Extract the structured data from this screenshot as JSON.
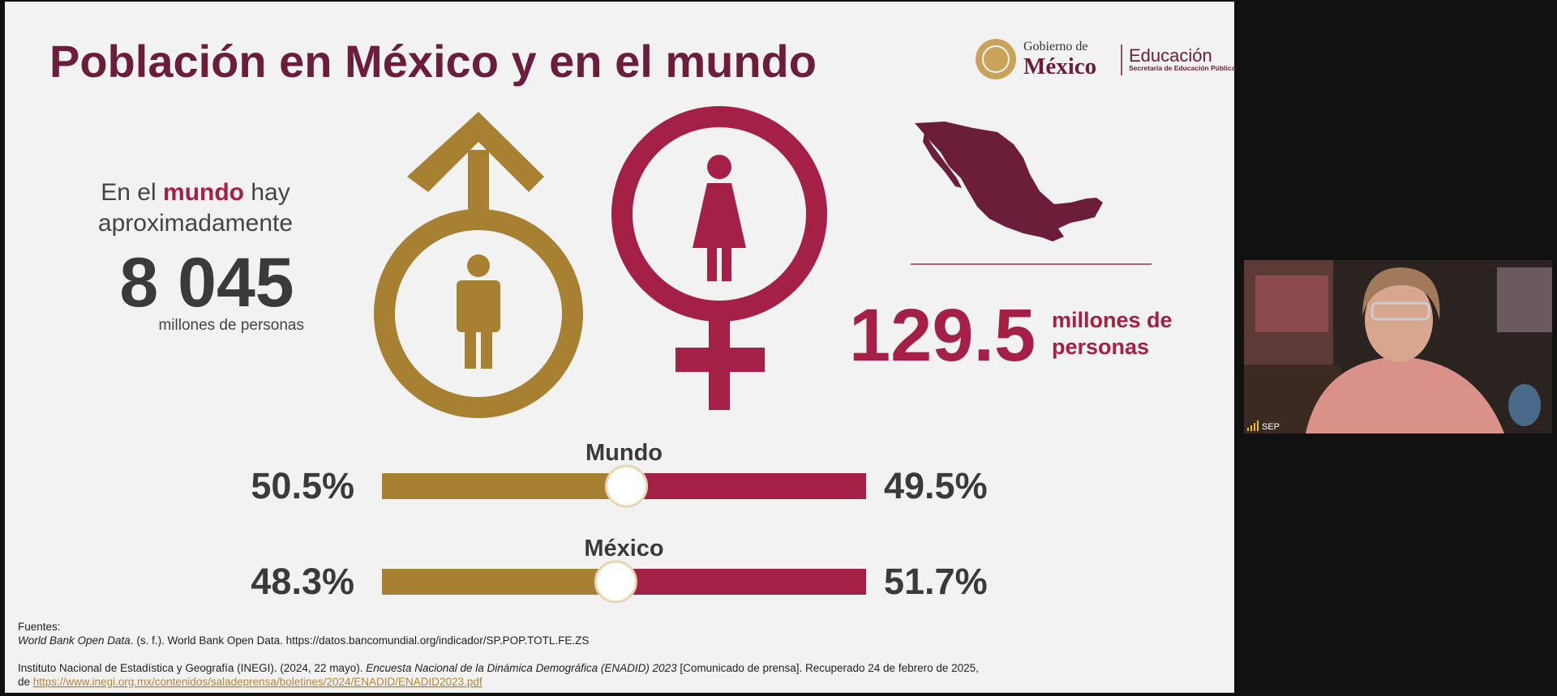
{
  "slide": {
    "title": "Población en México y en el mundo",
    "logo": {
      "gobierno": "Gobierno de",
      "mexico": "México",
      "educacion": "Educación",
      "sep": "Secretaría de Educación Pública"
    },
    "world": {
      "line1_a": "En el",
      "line1_b": "mundo",
      "line1_c": "hay",
      "line2": "aproximadamente",
      "number": "8 045",
      "unit": "millones de personas"
    },
    "mexico": {
      "number": 129.5,
      "unit_line1": "millones de",
      "unit_line2": "personas"
    },
    "bars": {
      "colors": [
        "#a88031",
        "#a52047"
      ],
      "groups": [
        {
          "title": "Mundo",
          "values": [
            50.5,
            49.5
          ],
          "value_labels": [
            "50.5%",
            "49.5%"
          ]
        },
        {
          "title": "México",
          "values": [
            48.3,
            51.7
          ],
          "value_labels": [
            "48.3%",
            "51.7%"
          ]
        }
      ]
    },
    "sources": {
      "heading": "Fuentes:",
      "ref1_title": "World Bank Open Data",
      "ref1_rest": ". (s. f.). World Bank Open Data. https://datos.bancomundial.org/indicador/SP.POP.TOTL.FE.ZS",
      "ref2_a": "Instituto Nacional de Estadística y Geografía (INEGI). (2024, 22 mayo). ",
      "ref2_title": "Encuesta Nacional de la Dinámica Demográfica (ENADID) 2023",
      "ref2_b": " [Comunicado de prensa]. Recuperado 24 de febrero de 2025,",
      "ref3_a": "de ",
      "ref3_link": "https://www.inegi.org.mx/contenidos/saladeprensa/boletines/2024/ENADID/ENADID2023.pdf"
    }
  },
  "video": {
    "participant": "SEP"
  }
}
